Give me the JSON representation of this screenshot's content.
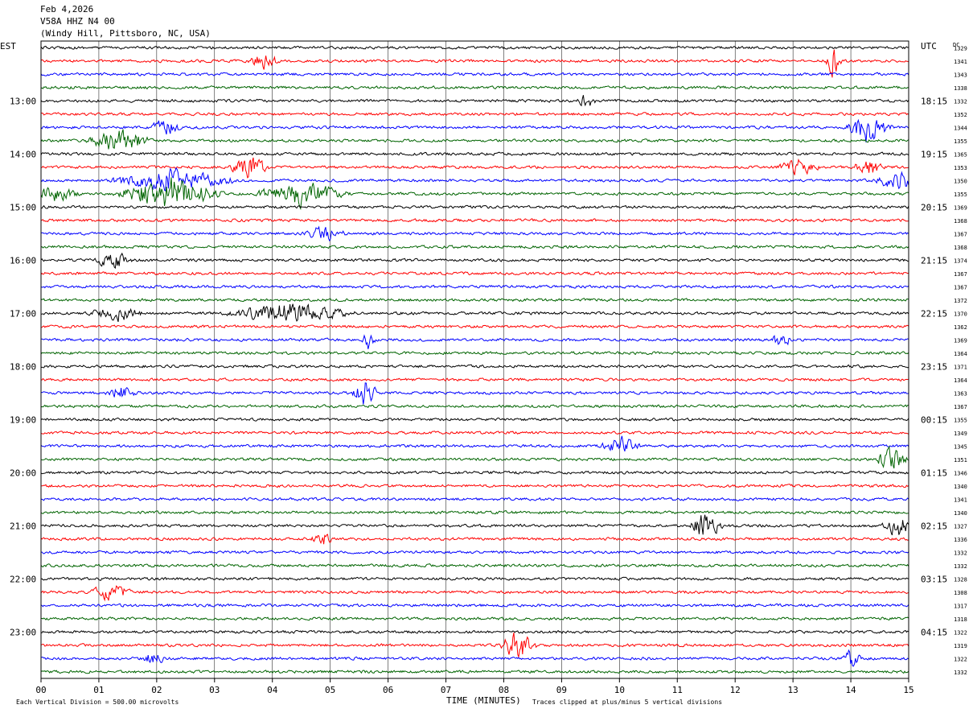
{
  "header": {
    "date": "Feb 4,2026",
    "station": "V58A HHZ N4 00",
    "location": "(Windy Hill, Pittsboro, NC, USA)"
  },
  "chart_data": {
    "type": "line",
    "title": "",
    "left_axis_title": "EST",
    "right_axis_title": "UTC",
    "dc_title": "DC",
    "xlabel": "TIME (MINUTES)",
    "x_ticks": [
      "00",
      "01",
      "02",
      "03",
      "04",
      "05",
      "06",
      "07",
      "08",
      "09",
      "10",
      "11",
      "12",
      "13",
      "14",
      "15"
    ],
    "xlim": [
      0,
      15
    ],
    "trace_colors": [
      "#000000",
      "#ff0000",
      "#0000ff",
      "#006400"
    ],
    "grid": true,
    "est_hour_labels": [
      "13:00",
      "14:00",
      "15:00",
      "16:00",
      "17:00",
      "18:00",
      "19:00",
      "20:00",
      "21:00",
      "22:00",
      "23:00"
    ],
    "utc_hour_labels": [
      "18:15",
      "19:15",
      "20:15",
      "21:15",
      "22:15",
      "23:15",
      "00:15",
      "01:15",
      "02:15",
      "03:15",
      "04:15"
    ],
    "dc_offsets": [
      1329,
      1341,
      1343,
      1338,
      1332,
      1352,
      1344,
      1355,
      1365,
      1353,
      1350,
      1355,
      1369,
      1368,
      1367,
      1368,
      1374,
      1367,
      1367,
      1372,
      1370,
      1362,
      1369,
      1364,
      1371,
      1364,
      1363,
      1367,
      1355,
      1349,
      1345,
      1351,
      1346,
      1340,
      1341,
      1340,
      1327,
      1336,
      1332,
      1332,
      1328,
      1308,
      1317,
      1318,
      1322,
      1319,
      1322,
      1332
    ],
    "events": [
      {
        "trace": 1,
        "minute": 13.7,
        "amp": 3.2,
        "dur": 0.15
      },
      {
        "trace": 1,
        "minute": 3.85,
        "amp": 1.2,
        "dur": 0.3
      },
      {
        "trace": 4,
        "minute": 9.45,
        "amp": 1.2,
        "dur": 0.2
      },
      {
        "trace": 6,
        "minute": 14.3,
        "amp": 2.3,
        "dur": 0.45
      },
      {
        "trace": 6,
        "minute": 2.15,
        "amp": 1.3,
        "dur": 0.3
      },
      {
        "trace": 7,
        "minute": 1.35,
        "amp": 1.9,
        "dur": 0.6
      },
      {
        "trace": 9,
        "minute": 3.6,
        "amp": 1.5,
        "dur": 0.4
      },
      {
        "trace": 9,
        "minute": 14.3,
        "amp": 1.5,
        "dur": 0.3
      },
      {
        "trace": 9,
        "minute": 13.1,
        "amp": 1.2,
        "dur": 0.4
      },
      {
        "trace": 10,
        "minute": 2.3,
        "amp": 1.7,
        "dur": 1.2
      },
      {
        "trace": 10,
        "minute": 14.8,
        "amp": 1.5,
        "dur": 0.4
      },
      {
        "trace": 11,
        "minute": 2.2,
        "amp": 2.6,
        "dur": 1.0
      },
      {
        "trace": 11,
        "minute": 4.5,
        "amp": 1.8,
        "dur": 0.9
      },
      {
        "trace": 11,
        "minute": 0.2,
        "amp": 1.3,
        "dur": 0.5
      },
      {
        "trace": 14,
        "minute": 4.9,
        "amp": 1.3,
        "dur": 0.4
      },
      {
        "trace": 16,
        "minute": 1.25,
        "amp": 1.2,
        "dur": 0.4
      },
      {
        "trace": 20,
        "minute": 4.3,
        "amp": 1.6,
        "dur": 1.2
      },
      {
        "trace": 20,
        "minute": 1.3,
        "amp": 1.2,
        "dur": 0.5
      },
      {
        "trace": 22,
        "minute": 5.65,
        "amp": 1.4,
        "dur": 0.15
      },
      {
        "trace": 22,
        "minute": 12.8,
        "amp": 1.1,
        "dur": 0.2
      },
      {
        "trace": 26,
        "minute": 5.6,
        "amp": 2.0,
        "dur": 0.25
      },
      {
        "trace": 26,
        "minute": 1.4,
        "amp": 1.1,
        "dur": 0.3
      },
      {
        "trace": 30,
        "minute": 10.0,
        "amp": 1.5,
        "dur": 0.4
      },
      {
        "trace": 31,
        "minute": 14.7,
        "amp": 1.8,
        "dur": 0.3
      },
      {
        "trace": 36,
        "minute": 11.5,
        "amp": 2.4,
        "dur": 0.3
      },
      {
        "trace": 36,
        "minute": 14.8,
        "amp": 1.7,
        "dur": 0.3
      },
      {
        "trace": 37,
        "minute": 4.85,
        "amp": 1.1,
        "dur": 0.2
      },
      {
        "trace": 41,
        "minute": 1.2,
        "amp": 1.3,
        "dur": 0.4
      },
      {
        "trace": 45,
        "minute": 8.25,
        "amp": 2.4,
        "dur": 0.35
      },
      {
        "trace": 46,
        "minute": 1.95,
        "amp": 1.3,
        "dur": 0.2
      },
      {
        "trace": 46,
        "minute": 14.0,
        "amp": 1.3,
        "dur": 0.2
      }
    ]
  },
  "footer": {
    "scale_note": "Each Vertical Division =  500.00 microvolts",
    "clip_note": "Traces clipped at plus/minus 5 vertical divisions"
  }
}
